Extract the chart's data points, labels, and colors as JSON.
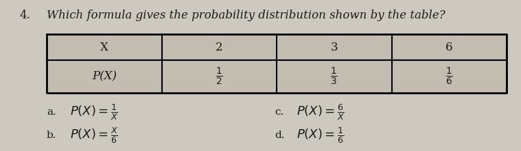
{
  "question_number": "4.",
  "question_text": "Which formula gives the probability distribution shown by the table?",
  "table_headers": [
    "X",
    "2",
    "3",
    "6"
  ],
  "table_row_label": "P(X)",
  "table_values": [
    "$\\frac{1}{2}$",
    "$\\frac{1}{3}$",
    "$\\frac{1}{6}$"
  ],
  "choice_a_label": "a.",
  "choice_a": "$P(X) = \\frac{1}{X}$",
  "choice_b_label": "b.",
  "choice_b": "$P(X) = \\frac{X}{6}$",
  "choice_c_label": "c.",
  "choice_c": "$P(X) = \\frac{6}{X}$",
  "choice_d_label": "d.",
  "choice_d": "$P(X) = \\frac{1}{6}$",
  "bg_color": "#cdc9be",
  "text_color": "#1a1a1a",
  "table_fill": "#c2bdb0",
  "font_size": 11,
  "title_font_size": 12
}
